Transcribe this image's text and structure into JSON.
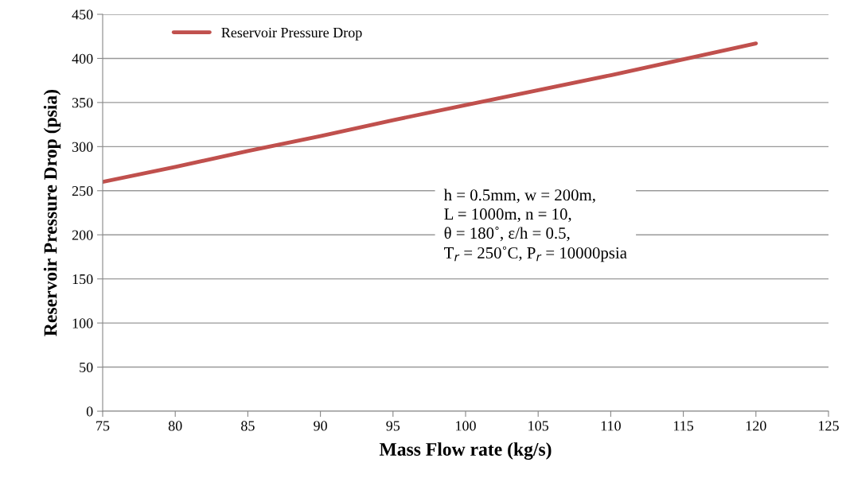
{
  "chart_data": {
    "type": "line",
    "xlabel": "Mass Flow rate (kg/s)",
    "ylabel": "Reservoir Pressure Drop (psia)",
    "x": [
      75,
      80,
      85,
      90,
      95,
      100,
      105,
      110,
      115,
      120
    ],
    "series": [
      {
        "name": "Reservoir Pressure Drop",
        "color": "#c0504d",
        "values": [
          260,
          277,
          295,
          312,
          330,
          347,
          364,
          381,
          399,
          417
        ]
      }
    ],
    "xlim": [
      75,
      125
    ],
    "xticks": [
      75,
      80,
      85,
      90,
      95,
      100,
      105,
      110,
      115,
      120,
      125
    ],
    "ylim": [
      0,
      450
    ],
    "yticks": [
      0,
      50,
      100,
      150,
      200,
      250,
      300,
      350,
      400,
      450
    ],
    "grid": "y",
    "legend": "top left",
    "marker": "none",
    "line_style": "solid",
    "annotations": [
      "h = 0.5mm, w = 200m,\nL = 1000m, n = 10,\nθ = 180˚, ε/h = 0.5,\nT$_{r}$ = 250˚C, P$_{r}$ = 10000psia"
    ]
  }
}
